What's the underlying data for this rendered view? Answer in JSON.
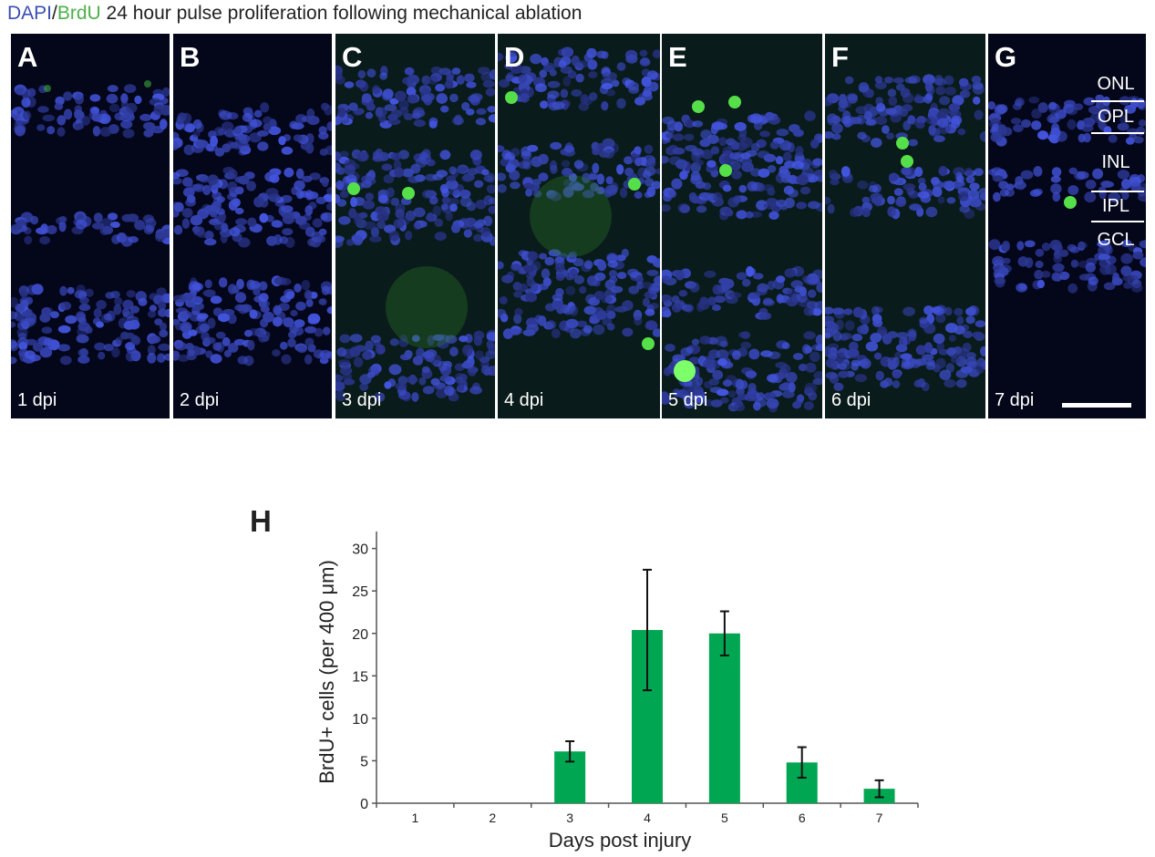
{
  "figure": {
    "title_parts": {
      "dapi": "DAPI",
      "slash": "/",
      "brdu": "BrdU",
      "rest": " 24 hour pulse proliferation following mechanical ablation"
    },
    "colors": {
      "dapi": "#3b4fb0",
      "brdu": "#4db04a",
      "bar": "#00a651"
    },
    "panels": [
      {
        "letter": "A",
        "label": "1 dpi"
      },
      {
        "letter": "B",
        "label": "2 dpi"
      },
      {
        "letter": "C",
        "label": "3 dpi"
      },
      {
        "letter": "D",
        "label": "4 dpi"
      },
      {
        "letter": "E",
        "label": "5 dpi"
      },
      {
        "letter": "F",
        "label": "6 dpi"
      },
      {
        "letter": "G",
        "label": "7 dpi"
      }
    ],
    "layers": [
      "ONL",
      "OPL",
      "INL",
      "IPL",
      "GCL"
    ],
    "chart_panel_letter": "H"
  },
  "chart_data": {
    "type": "bar",
    "categories": [
      "1",
      "2",
      "3",
      "4",
      "5",
      "6",
      "7"
    ],
    "values": [
      0,
      0,
      6.1,
      20.4,
      20.0,
      4.8,
      1.7
    ],
    "errors": [
      0,
      0,
      1.2,
      7.1,
      2.6,
      1.8,
      1.0
    ],
    "xlabel": "Days post injury",
    "ylabel": "BrdU+ cells (per 400 μm)",
    "ylim": [
      0,
      32
    ],
    "yticks": [
      0,
      5,
      10,
      15,
      20,
      25,
      30
    ],
    "grid": false,
    "legend": "none"
  }
}
